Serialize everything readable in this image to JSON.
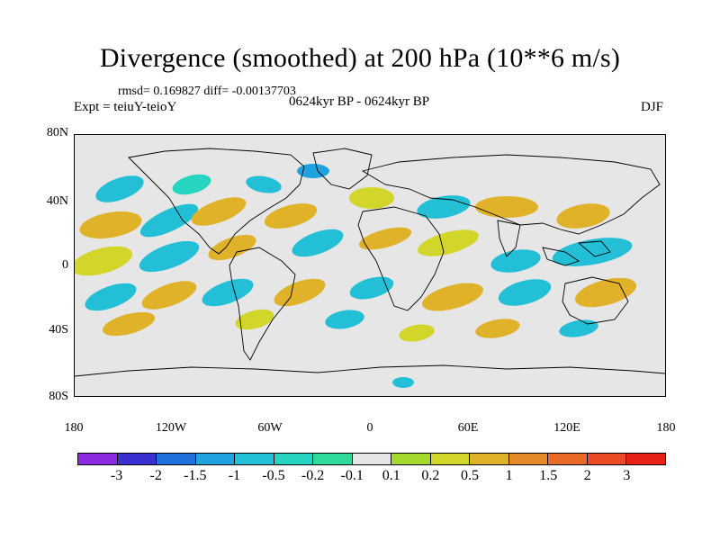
{
  "title": "Divergence (smoothed) at 200 hPa (10**6 m/s)",
  "stats_line": "rmsd= 0.169827 diff= -0.00137703",
  "expt_line": "Expt = teiuY-teioY",
  "period_line": "0624kyr BP - 0624kyr BP",
  "season": "DJF",
  "axes": {
    "y_labels": [
      "80N",
      "40N",
      "0",
      "40S",
      "80S"
    ],
    "x_labels": [
      "180",
      "120W",
      "60W",
      "0",
      "60E",
      "120E",
      "180"
    ]
  },
  "colorbar": {
    "labels": [
      "-3",
      "-2",
      "-1.5",
      "-1",
      "-0.5",
      "-0.2",
      "-0.1",
      "0.1",
      "0.2",
      "0.5",
      "1",
      "1.5",
      "2",
      "3"
    ],
    "colors": [
      "#8a2be2",
      "#3a2fd0",
      "#1f6fdc",
      "#1fa3e0",
      "#22bfd6",
      "#26d4c0",
      "#2fd99a",
      "#e6e6e6",
      "#a6d92e",
      "#d2d52a",
      "#e0b22a",
      "#e48a28",
      "#e86a26",
      "#ea4a24",
      "#e62218"
    ]
  }
}
